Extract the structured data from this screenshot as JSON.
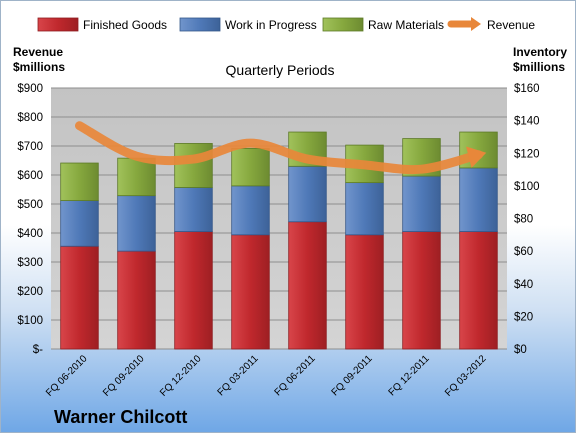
{
  "chart_data": {
    "type": "bar",
    "stacked": true,
    "title": "Quarterly Periods",
    "categories": [
      "FQ 06-2010",
      "FQ 09-2010",
      "FQ 12-2010",
      "FQ 03-2011",
      "FQ 06-2011",
      "FQ 09-2011",
      "FQ 12-2011",
      "FQ 03-2012"
    ],
    "series": [
      {
        "name": "Finished Goods",
        "axis": "right",
        "color": "#c0282d",
        "values": [
          63,
          60,
          72,
          70,
          78,
          70,
          72,
          72
        ]
      },
      {
        "name": "Work in Progress",
        "axis": "right",
        "color": "#4f79b8",
        "values": [
          28,
          34,
          27,
          30,
          34,
          32,
          34,
          39
        ]
      },
      {
        "name": "Raw Materials",
        "axis": "right",
        "color": "#86a83e",
        "values": [
          23,
          23,
          27,
          23,
          21,
          23,
          23,
          22
        ]
      },
      {
        "name": "Revenue",
        "type": "line",
        "axis": "left",
        "color": "#e8873a",
        "values": [
          770,
          665,
          655,
          710,
          655,
          635,
          620,
          670
        ]
      }
    ],
    "y_left": {
      "label": "Revenue\n$millions",
      "label_lines": [
        "Revenue",
        "$millions"
      ],
      "min": 0,
      "max": 900,
      "step": 100,
      "tick_labels": [
        "$-",
        "$100",
        "$200",
        "$300",
        "$400",
        "$500",
        "$600",
        "$700",
        "$800",
        "$900"
      ]
    },
    "y_right": {
      "label": "Inventory\n$millions",
      "label_lines": [
        "Inventory",
        "$millions"
      ],
      "min": 0,
      "max": 160,
      "step": 20,
      "tick_labels": [
        "$0",
        "$20",
        "$40",
        "$60",
        "$80",
        "$100",
        "$120",
        "$140",
        "$160"
      ]
    },
    "grid": true,
    "legend_position": "top"
  },
  "branding": {
    "company": "Warner Chilcott"
  }
}
